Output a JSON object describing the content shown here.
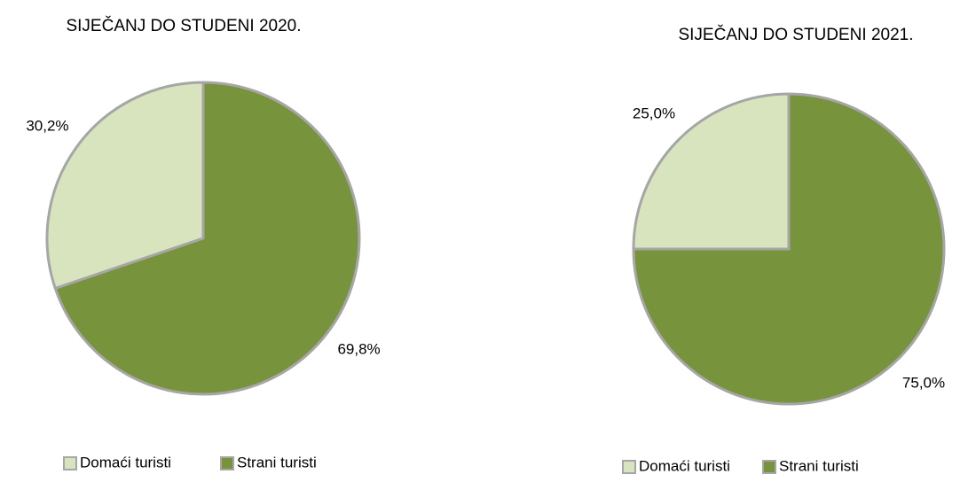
{
  "chart_data": [
    {
      "type": "pie",
      "title": "SIJEČANJ DO STUDENI 2020.",
      "categories": [
        "Domaći turisti",
        "Strani turisti"
      ],
      "values": [
        30.2,
        69.8
      ],
      "value_labels": [
        "30,2%",
        "69,8%"
      ],
      "colors": [
        "#d7e4bd",
        "#77933c"
      ],
      "legend": "bottom"
    },
    {
      "type": "pie",
      "title": "SIJEČANJ DO STUDENI 2021.",
      "categories": [
        "Domaći turisti",
        "Strani turisti"
      ],
      "values": [
        25.0,
        75.0
      ],
      "value_labels": [
        "25,0%",
        "75,0%"
      ],
      "colors": [
        "#d7e4bd",
        "#77933c"
      ],
      "legend": "bottom"
    }
  ]
}
